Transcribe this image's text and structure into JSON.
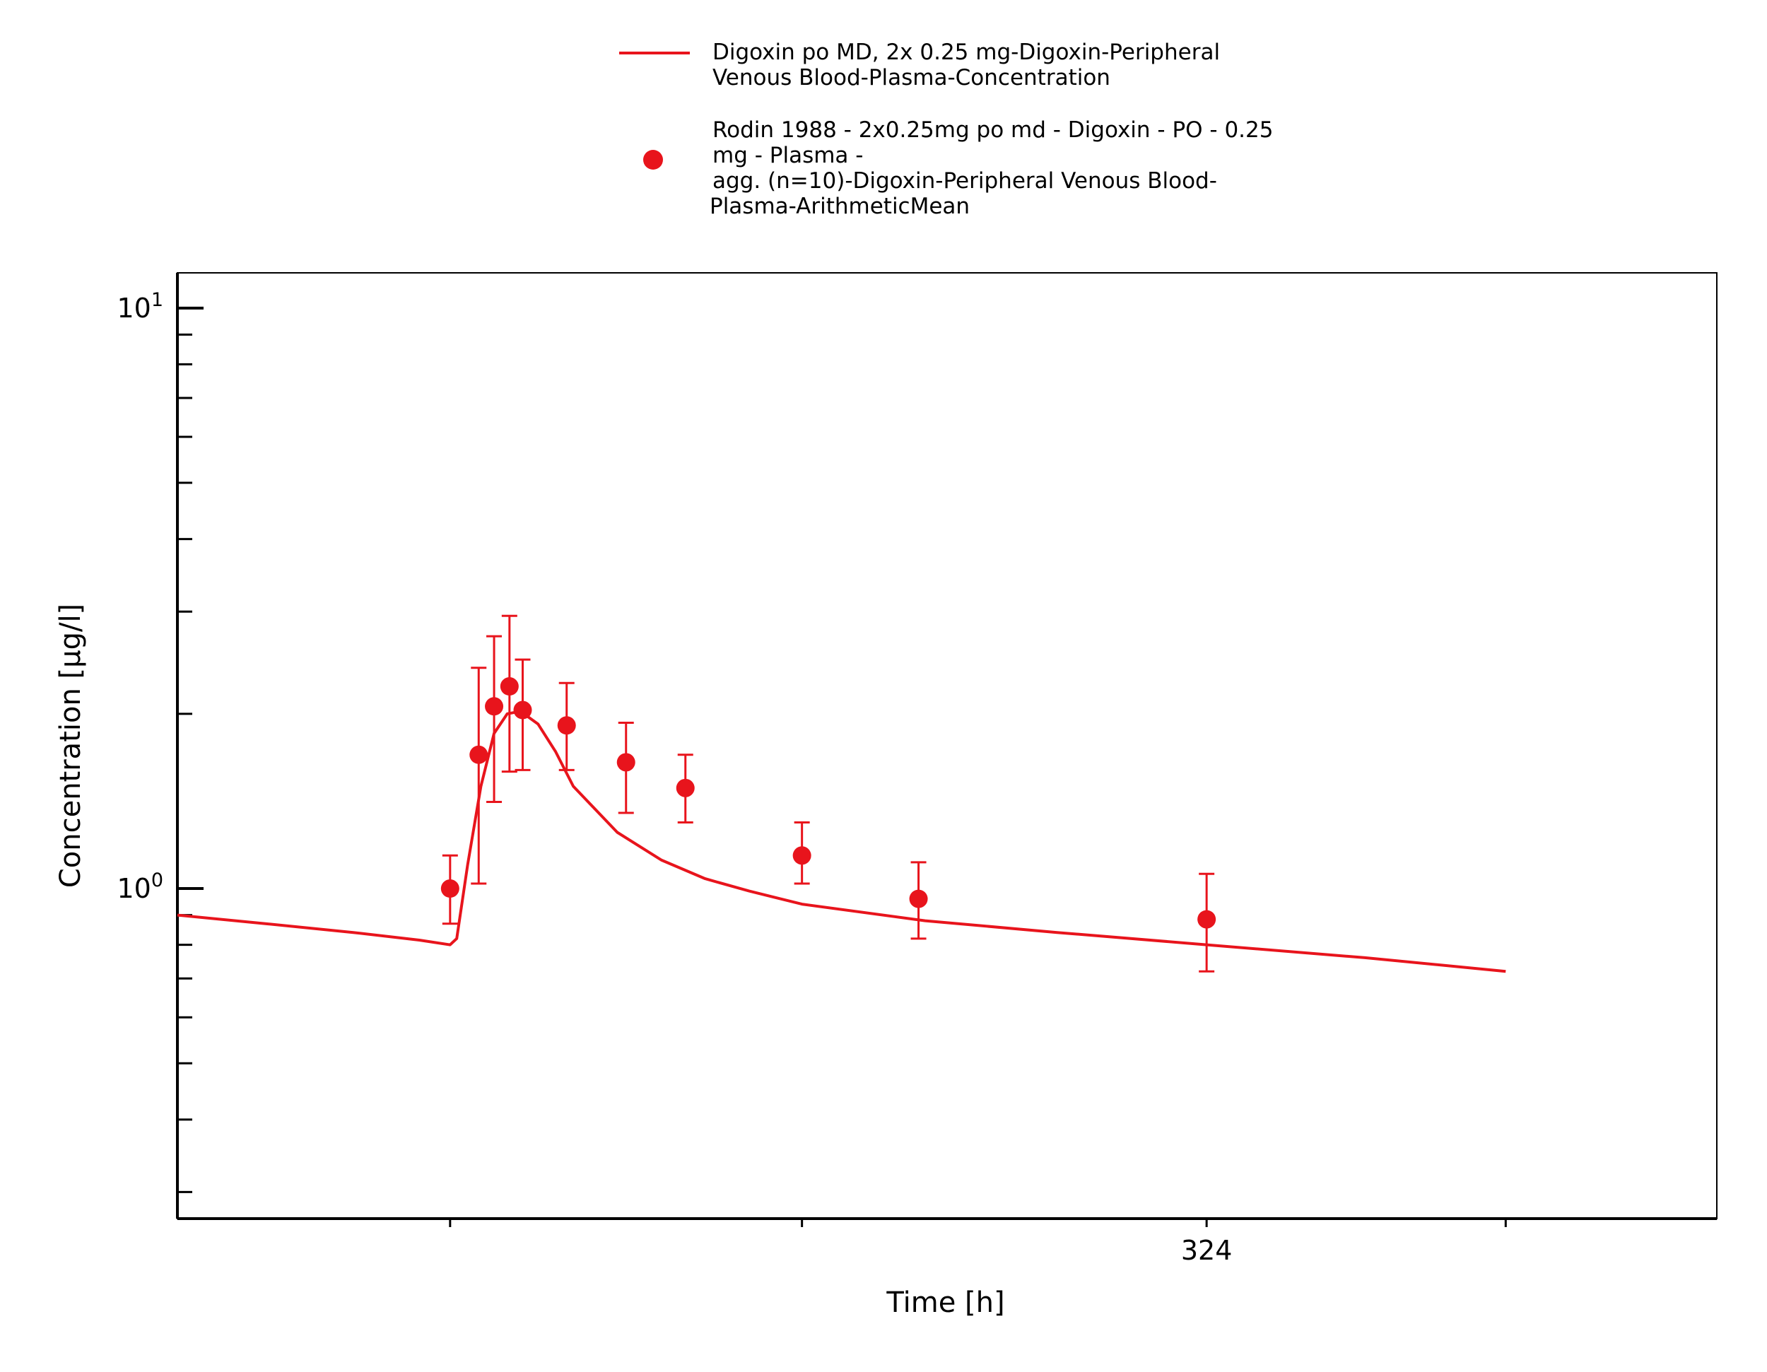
{
  "chart_data": {
    "type": "line",
    "xlabel": "Time [h]",
    "ylabel": "Concentration [µg/l]",
    "x_scale": "linear",
    "y_scale": "log",
    "xlim": [
      90,
      440
    ],
    "ylim": [
      0.27,
      11.5
    ],
    "x_ticks": [
      {
        "value": 152,
        "label": ""
      },
      {
        "value": 232,
        "label": ""
      },
      {
        "value": 324,
        "label": "324"
      },
      {
        "value": 392,
        "label": ""
      }
    ],
    "y_major_ticks": [
      {
        "value": 1,
        "base": "10",
        "exp": "0"
      },
      {
        "value": 10,
        "base": "10",
        "exp": "1"
      }
    ],
    "y_minor_ticks": [
      0.3,
      0.4,
      0.5,
      0.6,
      0.7,
      0.8,
      0.9,
      2,
      3,
      4,
      5,
      6,
      7,
      8,
      9
    ],
    "grid": false,
    "legend_position": "top-center",
    "series": [
      {
        "name": "Digoxin po MD, 2x 0.25 mg-Digoxin-Peripheral Venous Blood-Plasma-Concentration",
        "kind": "line",
        "color": "#e8141c",
        "x": [
          90,
          110,
          130,
          145,
          152,
          153.5,
          156,
          159,
          162,
          165,
          168,
          172,
          176,
          180,
          190,
          200,
          210,
          220,
          232,
          260,
          290,
          324,
          360,
          392
        ],
        "y": [
          0.9,
          0.87,
          0.84,
          0.815,
          0.8,
          0.82,
          1.1,
          1.5,
          1.85,
          2.0,
          2.02,
          1.92,
          1.72,
          1.5,
          1.25,
          1.12,
          1.04,
          0.99,
          0.94,
          0.88,
          0.84,
          0.8,
          0.76,
          0.72
        ]
      },
      {
        "name": "Rodin 1988 - 2x0.25mg po md - Digoxin - PO - 0.25 mg - Plasma - agg. (n=10)-Digoxin-Peripheral Venous Blood-Plasma-ArithmeticMean",
        "kind": "scatter",
        "color": "#e8141c",
        "x": [
          152,
          158.5,
          162,
          165.5,
          168.5,
          178.5,
          192,
          205.5,
          232,
          258.5,
          324
        ],
        "y": [
          1.0,
          1.7,
          2.06,
          2.23,
          2.03,
          1.91,
          1.65,
          1.49,
          1.14,
          0.96,
          0.885
        ],
        "y_lower": [
          0.87,
          1.02,
          1.41,
          1.59,
          1.6,
          1.6,
          1.35,
          1.3,
          1.02,
          0.82,
          0.72
        ],
        "y_upper": [
          1.14,
          2.4,
          2.72,
          2.95,
          2.48,
          2.26,
          1.93,
          1.7,
          1.3,
          1.11,
          1.06
        ]
      }
    ],
    "legend": {
      "entries": [
        {
          "lines": [
            "Digoxin po MD, 2x 0.25 mg-Digoxin-Peripheral",
            "Venous Blood-Plasma-Concentration"
          ]
        },
        {
          "lines": [
            "Rodin 1988 - 2x0.25mg po md - Digoxin - PO - 0.25",
            "mg - Plasma -",
            "agg. (n=10)-Digoxin-Peripheral Venous Blood-",
            "Plasma-ArithmeticMean"
          ]
        }
      ]
    }
  }
}
